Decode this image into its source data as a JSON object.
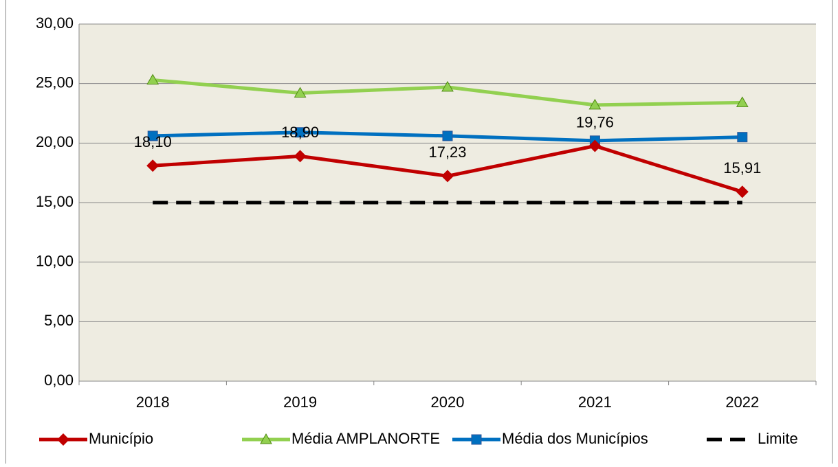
{
  "chart_data": {
    "type": "line",
    "categories": [
      "2018",
      "2019",
      "2020",
      "2021",
      "2022"
    ],
    "series": [
      {
        "name": "Município",
        "color": "#c00000",
        "marker": "diamond",
        "values": [
          18.1,
          18.9,
          17.23,
          19.76,
          15.91
        ],
        "value_labels": [
          "18,10",
          "18,90",
          "17,23",
          "19,76",
          "15,91"
        ]
      },
      {
        "name": "Média AMPLANORTE",
        "color": "#92d050",
        "marker": "triangle",
        "values": [
          25.3,
          24.2,
          24.7,
          23.2,
          23.4
        ]
      },
      {
        "name": "Média dos Municípios",
        "color": "#0070c0",
        "marker": "square",
        "values": [
          20.6,
          20.9,
          20.6,
          20.2,
          20.5
        ]
      },
      {
        "name": "Limite",
        "color": "#000000",
        "dashed": true,
        "values": [
          15,
          15,
          15,
          15,
          15
        ]
      }
    ],
    "ylim": [
      0,
      30
    ],
    "yticks": [
      {
        "value": 0,
        "label": "0,00"
      },
      {
        "value": 5,
        "label": "5,00"
      },
      {
        "value": 10,
        "label": "10,00"
      },
      {
        "value": 15,
        "label": "15,00"
      },
      {
        "value": 20,
        "label": "20,00"
      },
      {
        "value": 25,
        "label": "25,00"
      },
      {
        "value": 30,
        "label": "30,00"
      }
    ],
    "grid": true,
    "plot_background": "#eeece1",
    "legend": "bottom"
  }
}
